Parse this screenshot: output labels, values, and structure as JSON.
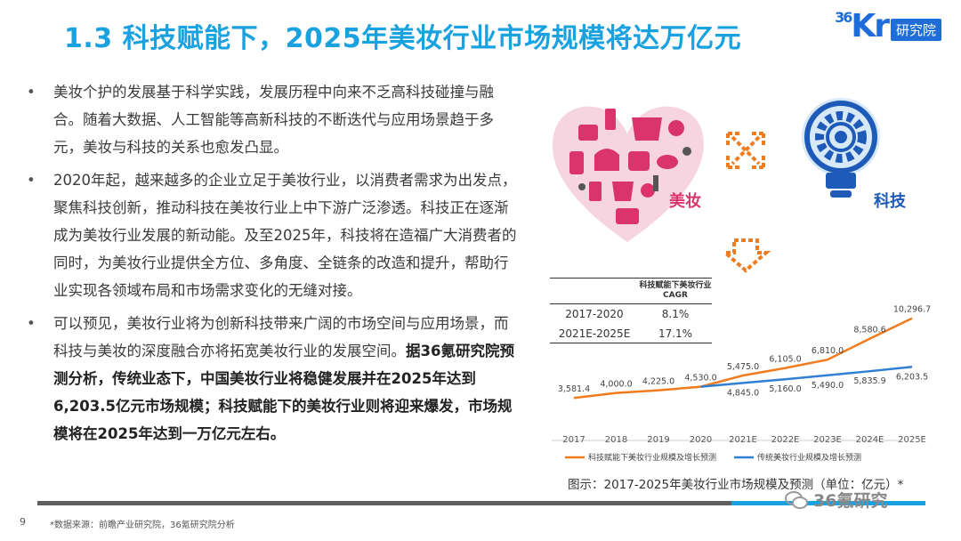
{
  "header": {
    "title": "1.3 科技赋能下，2025年美妆行业市场规模将达万亿元",
    "brand_prefix": "36",
    "brand_letters": "Kr",
    "brand_sub": "研究院"
  },
  "bullets": [
    {
      "text": "美妆个护的发展基于科学实践，发展历程中向来不乏高科技碰撞与融合。随着大数据、人工智能等高新科技的不断迭代与应用场景趋于多元，美妆与科技的关系也愈发凸显。",
      "bold": ""
    },
    {
      "text": "2020年起，越来越多的企业立足于美妆行业，以消费者需求为出发点，聚焦科技创新，推动科技在美妆行业上中下游广泛渗透。科技正在逐渐成为美妆行业发展的新动能。及至2025年，科技将在造福广大消费者的同时，为美妆行业提供全方位、多角度、全链条的改造和提升，帮助行业实现各领域布局和市场需求变化的无缝对接。",
      "bold": ""
    },
    {
      "text": "可以预见，美妆行业将为创新科技带来广阔的市场空间与应用场景，而科技与美妆的深度融合亦将拓宽美妆行业的发展空间。",
      "bold": "据36氪研究院预测分析，传统业态下，中国美妆行业将稳健发展并在2025年达到6,203.5亿元市场规模；科技赋能下的美妆行业则将迎来爆发，市场规模将在2025年达到一万亿元左右。"
    }
  ],
  "graphics": {
    "beauty_label": "美妆",
    "tech_label": "科技"
  },
  "cagr_table": {
    "header": "科技赋能下美妆行业CAGR",
    "rows": [
      {
        "period": "2017-2020",
        "value": "8.1%"
      },
      {
        "period": "2021E-2025E",
        "value": "17.1%"
      }
    ]
  },
  "chart_data": {
    "type": "line",
    "title": "",
    "xlabel": "",
    "ylabel": "",
    "categories": [
      "2017",
      "2018",
      "2019",
      "2020",
      "2021E",
      "2022E",
      "2023E",
      "2024E",
      "2025E"
    ],
    "ylim": [
      0,
      12000
    ],
    "grid": false,
    "legend_position": "bottom",
    "series": [
      {
        "name": "科技赋能下美妆行业规模及增长预测",
        "color": "#f07c1f",
        "values": [
          3581.4,
          4000.0,
          4225.0,
          4530.0,
          5475.0,
          6105.0,
          6810.0,
          8580.6,
          10296.7
        ],
        "labels": [
          "3,581.4",
          "4,000.0",
          "4,225.0",
          "4,530.0",
          "5,475.0",
          "6,105.0",
          "6,810.0",
          "8,580.6",
          "10,296.7"
        ]
      },
      {
        "name": "传统美妆行业规模及增长预测",
        "color": "#2f7fd2",
        "values": [
          null,
          null,
          null,
          4530.0,
          4845.0,
          5160.0,
          5490.0,
          5835.9,
          6203.5
        ],
        "labels": [
          "",
          "",
          "",
          "",
          "4,845.0",
          "5,160.0",
          "5,490.0",
          "5,835.9",
          "6,203.5"
        ]
      }
    ]
  },
  "caption": "图示：2017-2025年美妆行业市场规模及预测（单位：亿元）*",
  "footer": {
    "page_number": "9",
    "source": "*数据来源：前瞻产业研究院，36氪研究院分析",
    "watermark": "36氪研究"
  },
  "colors": {
    "title_blue": "#1aa1e0",
    "brand_blue": "#1e6dd8",
    "beauty_pink": "#d9356c",
    "accent_orange": "#f07c1f",
    "tech_blue": "#1e5bb8"
  }
}
